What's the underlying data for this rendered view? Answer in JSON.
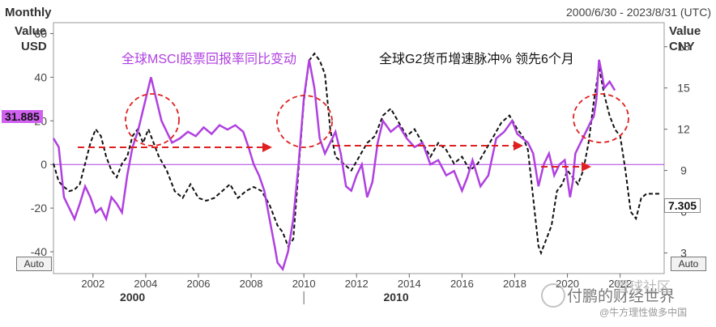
{
  "header": {
    "frequency": "Monthly",
    "date_range": "2000/6/30 - 2023/8/31 (UTC)"
  },
  "axes": {
    "left_title_line1": "Value",
    "left_title_line2": "USD",
    "right_title_line1": "Value",
    "right_title_line2": "CNY",
    "left_ticks": [
      60,
      40,
      20,
      0,
      -20,
      -40
    ],
    "right_ticks": [
      18,
      15,
      12,
      9,
      6,
      3
    ],
    "left_ylim": [
      -50,
      65
    ],
    "right_ylim": [
      1.5,
      19.75
    ],
    "x_ticks": [
      "2002",
      "2004",
      "2006",
      "2008",
      "2010",
      "2012",
      "2014",
      "2016",
      "2018",
      "2020",
      "2022"
    ],
    "decades": [
      "2000",
      "2010"
    ],
    "auto_left": "Auto",
    "auto_right": "Auto"
  },
  "annotations": {
    "msci_label": "全球MSCI股票回报率同比变动",
    "g2_label": "全球G2货币增速脉冲% 领先6个月",
    "last_left_value": "31.885",
    "last_right_value": "7.305"
  },
  "watermark": {
    "line1": "付鹏的财经世界",
    "line2": "@牛方理性做多中国",
    "community": "雪球社区"
  },
  "colors": {
    "msci": "#b040e0",
    "g2": "#111111",
    "arrow": "#e02020",
    "circle": "#e02020",
    "zero_line": "#b040e0"
  },
  "chart_data": {
    "type": "line",
    "x_range": [
      2000.5,
      2023.67
    ],
    "series": [
      {
        "name": "全球MSCI股票回报率同比变动",
        "axis": "left",
        "x": [
          2000.5,
          2000.7,
          2000.9,
          2001.1,
          2001.3,
          2001.5,
          2001.7,
          2001.9,
          2002.1,
          2002.3,
          2002.5,
          2002.7,
          2002.9,
          2003.1,
          2003.3,
          2003.5,
          2003.7,
          2003.9,
          2004.0,
          2004.2,
          2004.4,
          2004.6,
          2004.8,
          2005.0,
          2005.3,
          2005.6,
          2005.9,
          2006.2,
          2006.5,
          2006.8,
          2007.1,
          2007.4,
          2007.7,
          2007.9,
          2008.1,
          2008.3,
          2008.5,
          2008.7,
          2008.9,
          2009.0,
          2009.2,
          2009.4,
          2009.6,
          2009.8,
          2010.0,
          2010.2,
          2010.4,
          2010.6,
          2010.8,
          2011.0,
          2011.2,
          2011.4,
          2011.6,
          2011.8,
          2012.0,
          2012.2,
          2012.4,
          2012.6,
          2012.8,
          2013.0,
          2013.3,
          2013.6,
          2013.9,
          2014.2,
          2014.5,
          2014.8,
          2015.1,
          2015.4,
          2015.7,
          2016.0,
          2016.2,
          2016.4,
          2016.7,
          2017.0,
          2017.3,
          2017.6,
          2017.9,
          2018.1,
          2018.3,
          2018.5,
          2018.7,
          2018.9,
          2019.1,
          2019.3,
          2019.5,
          2019.7,
          2019.9,
          2020.1,
          2020.2,
          2020.3,
          2020.5,
          2020.7,
          2020.9,
          2021.0,
          2021.1,
          2021.2,
          2021.3,
          2021.4,
          2021.6,
          2021.8
        ],
        "values": [
          12,
          8,
          -15,
          -20,
          -25,
          -18,
          -10,
          -15,
          -22,
          -20,
          -25,
          -15,
          -18,
          -22,
          -5,
          8,
          15,
          25,
          30,
          40,
          30,
          20,
          15,
          10,
          12,
          15,
          13,
          17,
          14,
          18,
          16,
          18,
          15,
          8,
          0,
          -5,
          -12,
          -25,
          -38,
          -45,
          -48,
          -40,
          -25,
          0,
          30,
          48,
          35,
          12,
          5,
          10,
          15,
          5,
          -10,
          -12,
          -5,
          0,
          -15,
          -8,
          10,
          20,
          15,
          18,
          12,
          8,
          10,
          0,
          2,
          -5,
          -3,
          -12,
          -6,
          2,
          -10,
          -5,
          12,
          15,
          20,
          14,
          12,
          10,
          5,
          -10,
          0,
          5,
          -5,
          0,
          2,
          -15,
          -8,
          5,
          10,
          15,
          20,
          22,
          30,
          48,
          42,
          35,
          38,
          34
        ]
      },
      {
        "name": "全球G2货币增速脉冲% 领先6个月",
        "axis": "right",
        "x": [
          2000.5,
          2000.7,
          2000.9,
          2001.1,
          2001.3,
          2001.5,
          2001.7,
          2001.9,
          2002.1,
          2002.3,
          2002.5,
          2002.7,
          2002.9,
          2003.1,
          2003.3,
          2003.5,
          2003.7,
          2003.9,
          2004.1,
          2004.3,
          2004.5,
          2004.8,
          2005.1,
          2005.4,
          2005.7,
          2006.0,
          2006.3,
          2006.6,
          2006.9,
          2007.2,
          2007.5,
          2007.8,
          2008.1,
          2008.4,
          2008.7,
          2009.0,
          2009.2,
          2009.4,
          2009.6,
          2009.8,
          2010.0,
          2010.2,
          2010.4,
          2010.6,
          2010.8,
          2011.0,
          2011.2,
          2011.5,
          2011.8,
          2012.1,
          2012.4,
          2012.7,
          2013.0,
          2013.3,
          2013.6,
          2013.9,
          2014.2,
          2014.5,
          2014.8,
          2015.1,
          2015.4,
          2015.7,
          2016.0,
          2016.3,
          2016.6,
          2016.9,
          2017.2,
          2017.5,
          2017.8,
          2018.1,
          2018.3,
          2018.5,
          2018.7,
          2018.9,
          2019.0,
          2019.2,
          2019.4,
          2019.6,
          2019.8,
          2020.0,
          2020.2,
          2020.4,
          2020.6,
          2020.8,
          2021.0,
          2021.2,
          2021.4,
          2021.6,
          2021.8,
          2022.0,
          2022.2,
          2022.4,
          2022.6,
          2022.8,
          2023.0,
          2023.2,
          2023.5
        ],
        "values": [
          9.5,
          8.2,
          7.8,
          7.5,
          7.6,
          8.0,
          9.5,
          11.0,
          12.0,
          11.5,
          10.0,
          9.0,
          8.5,
          9.5,
          10.0,
          11.5,
          12.0,
          11.0,
          12.0,
          11.0,
          10.0,
          9.0,
          7.5,
          7.0,
          8.0,
          7.0,
          6.8,
          7.0,
          7.5,
          8.0,
          7.0,
          7.5,
          7.8,
          7.5,
          6.5,
          5.0,
          4.5,
          3.5,
          4.0,
          9.0,
          14.0,
          17.0,
          17.5,
          17.0,
          16.0,
          12.0,
          10.0,
          9.5,
          9.0,
          10.0,
          11.0,
          11.5,
          13.0,
          13.5,
          12.5,
          11.5,
          12.0,
          11.0,
          10.0,
          11.0,
          10.5,
          9.5,
          10.0,
          9.0,
          9.5,
          10.5,
          11.5,
          12.5,
          13.0,
          12.0,
          11.5,
          10.5,
          7.0,
          3.5,
          3.0,
          4.0,
          5.0,
          7.5,
          8.0,
          9.0,
          8.5,
          8.0,
          9.0,
          11.0,
          14.0,
          16.5,
          14.5,
          13.0,
          12.0,
          11.5,
          9.0,
          6.0,
          5.5,
          7.0,
          7.305,
          7.305,
          7.305
        ]
      }
    ]
  }
}
